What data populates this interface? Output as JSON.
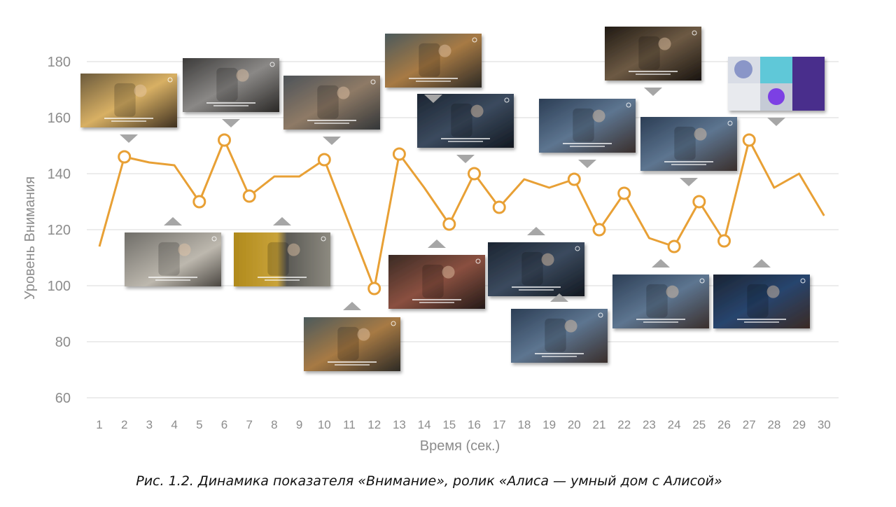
{
  "chart_data": {
    "type": "line",
    "title": "",
    "xlabel": "Время (сек.)",
    "ylabel": "Уровень Внимания",
    "x": [
      1,
      2,
      3,
      4,
      5,
      6,
      7,
      8,
      9,
      10,
      11,
      12,
      13,
      14,
      15,
      16,
      17,
      18,
      19,
      20,
      21,
      22,
      23,
      24,
      25,
      26,
      27,
      28,
      29,
      30
    ],
    "values": [
      114,
      146,
      144,
      143,
      130,
      152,
      132,
      139,
      139,
      145,
      122,
      99,
      147,
      135,
      122,
      140,
      128,
      138,
      135,
      138,
      120,
      133,
      117,
      114,
      130,
      116,
      152,
      135,
      140,
      125
    ],
    "ylim": [
      60,
      190
    ],
    "yticks": [
      60,
      80,
      100,
      120,
      140,
      160,
      180
    ],
    "grid": true,
    "line_color": "#E8A035",
    "marker_points": [
      2,
      5,
      6,
      7,
      10,
      12,
      13,
      15,
      16,
      17,
      20,
      21,
      22,
      24,
      25,
      26,
      27
    ],
    "frames": [
      {
        "time": 2,
        "pointer": "down",
        "scene": "woman-table"
      },
      {
        "time": 5,
        "pointer": "up",
        "scene": "smart-speaker"
      },
      {
        "time": 6,
        "pointer": "down",
        "scene": "kettle"
      },
      {
        "time": 7,
        "pointer": "up",
        "scene": "elevator"
      },
      {
        "time": 10,
        "pointer": "down",
        "scene": "man-phone"
      },
      {
        "time": 12,
        "pointer": "up",
        "scene": "cat-window"
      },
      {
        "time": 13,
        "pointer": "down",
        "scene": "cat-window-2"
      },
      {
        "time": 15,
        "pointer": "up",
        "scene": "woman-sleeping"
      },
      {
        "time": 16,
        "pointer": "down",
        "scene": "bedroom-night"
      },
      {
        "time": 17,
        "pointer": "up",
        "scene": "bedroom-dark"
      },
      {
        "time": 20,
        "pointer": "down",
        "scene": "man-kids-room"
      },
      {
        "time": 21,
        "pointer": "up",
        "scene": "kids-room"
      },
      {
        "time": 22,
        "pointer": "down",
        "scene": "hand-device"
      },
      {
        "time": 24,
        "pointer": "up",
        "scene": "family-room"
      },
      {
        "time": 25,
        "pointer": "down",
        "scene": "family-room-2"
      },
      {
        "time": 26,
        "pointer": "up",
        "scene": "speaker-glow"
      },
      {
        "time": 27,
        "pointer": "down",
        "scene": "product-ad"
      }
    ]
  },
  "caption": "Рис. 1.2. Динамика показателя «Внимание», ролик «Алиса — умный дом с Алисой»"
}
